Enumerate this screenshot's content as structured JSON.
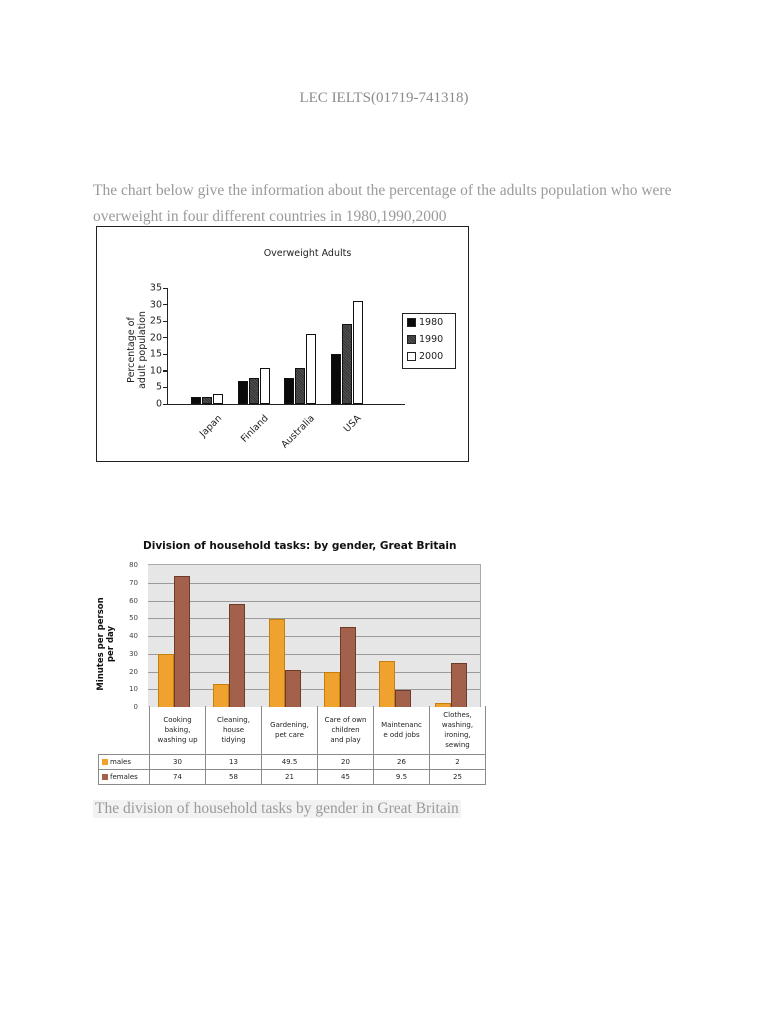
{
  "header": {
    "title": "LEC IELTS(01719-741318)"
  },
  "intro": {
    "line1": "The chart below give the information about the percentage of the adults population who were",
    "line2": "overweight in four different countries in 1980,1990,2000"
  },
  "caption": "The division of household tasks by gender in Great Britain",
  "chart_data": [
    {
      "type": "bar",
      "title": "Overweight Adults",
      "xlabel": "",
      "ylabel": "Percentage of adult population",
      "ylim": [
        0,
        35
      ],
      "yticks": [
        "35",
        "30",
        "25",
        "20",
        "15",
        "10",
        "5",
        "0"
      ],
      "categories": [
        "Japan",
        "Finland",
        "Australia",
        "USA"
      ],
      "series": [
        {
          "name": "1980",
          "values": [
            2,
            7,
            8,
            15
          ]
        },
        {
          "name": "1990",
          "values": [
            2,
            8,
            11,
            24
          ]
        },
        {
          "name": "2000",
          "values": [
            3,
            11,
            21,
            31
          ]
        }
      ],
      "legend_position": "right",
      "grid": false
    },
    {
      "type": "bar",
      "title": "Division of household tasks: by gender, Great Britain",
      "xlabel": "",
      "ylabel": "Minutes per person per day",
      "ylim": [
        0,
        80
      ],
      "yticks": [
        "80",
        "70",
        "60",
        "50",
        "40",
        "30",
        "20",
        "10",
        "0"
      ],
      "categories": [
        "Cooking baking, washing up",
        "Cleaning, house tidying",
        "Gardening, pet care",
        "Care of own children and play",
        "Maintenance odd jobs",
        "Clothes, washing, ironing, sewing"
      ],
      "category_lines": [
        [
          "Cooking",
          "baking,",
          "washing up"
        ],
        [
          "Cleaning,",
          "house",
          "tidying"
        ],
        [
          "Gardening,",
          "pet care"
        ],
        [
          "Care of own",
          "children",
          "and play"
        ],
        [
          "Maintenanc",
          "e odd jobs"
        ],
        [
          "Clothes,",
          "washing,",
          "ironing,",
          "sewing"
        ]
      ],
      "series": [
        {
          "name": "males",
          "values": [
            30,
            13,
            49.5,
            20,
            26,
            2
          ],
          "color": "#f0a22e",
          "labels": [
            "30",
            "13",
            "49.5",
            "20",
            "26",
            "2"
          ]
        },
        {
          "name": "females",
          "values": [
            74,
            58,
            21,
            45,
            9.5,
            25
          ],
          "color": "#a3614c",
          "labels": [
            "74",
            "58",
            "21",
            "45",
            "9.5",
            "25"
          ]
        }
      ],
      "grid": true,
      "legend_position": "data-table"
    }
  ]
}
